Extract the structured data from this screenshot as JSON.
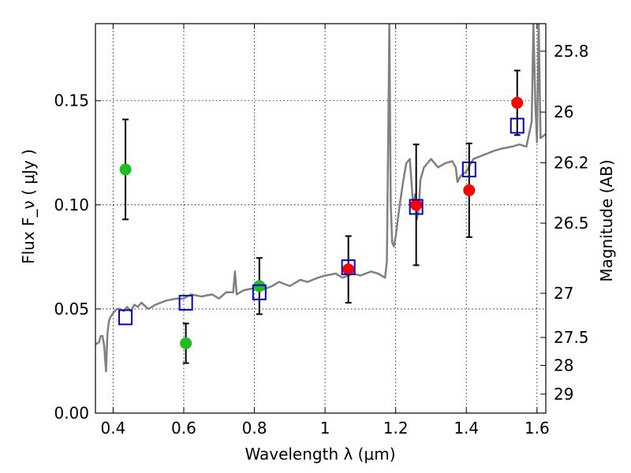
{
  "chart_data": {
    "type": "scatter",
    "xlabel": "Wavelength  λ (μm)",
    "ylabel": "Flux  F_ν  ( μJy )",
    "ylabel_right": "Magnitude (AB)",
    "xlim": [
      0.35,
      1.625
    ],
    "ylim": [
      0.0,
      0.187
    ],
    "grid": true,
    "x_ticks": [
      0.4,
      0.6,
      0.8,
      1.0,
      1.2,
      1.4,
      1.6
    ],
    "x_tick_labels": [
      "0.4",
      "0.6",
      "0.8",
      "1",
      "1.2",
      "1.4",
      "1.6"
    ],
    "y_ticks": [
      0.0,
      0.05,
      0.1,
      0.15
    ],
    "y_tick_labels": [
      "0.00",
      "0.05",
      "0.10",
      "0.15"
    ],
    "right_ticks": [
      {
        "label": "25.8",
        "mag": 25.8
      },
      {
        "label": "26",
        "mag": 26.0
      },
      {
        "label": "26.2",
        "mag": 26.2
      },
      {
        "label": "26.5",
        "mag": 26.5
      },
      {
        "label": "27",
        "mag": 27.0
      },
      {
        "label": "27.5",
        "mag": 27.5
      },
      {
        "label": "28",
        "mag": 28.0
      },
      {
        "label": "29",
        "mag": 29.0
      }
    ],
    "series": [
      {
        "marker": "circle",
        "color": "#22bb22",
        "points": [
          {
            "x": 0.435,
            "y": 0.117,
            "err": 0.024
          },
          {
            "x": 0.606,
            "y": 0.0335,
            "err": 0.0095
          },
          {
            "x": 0.814,
            "y": 0.061,
            "err": 0.0135
          }
        ]
      },
      {
        "marker": "circle",
        "color": "#ff0000",
        "points": [
          {
            "x": 1.066,
            "y": 0.069,
            "err": 0.016
          },
          {
            "x": 1.258,
            "y": 0.1,
            "err": 0.029
          },
          {
            "x": 1.408,
            "y": 0.107,
            "err": 0.0225
          },
          {
            "x": 1.544,
            "y": 0.149,
            "err": 0.0155
          }
        ]
      },
      {
        "marker": "square",
        "color": "#0000cc",
        "points": [
          {
            "x": 0.435,
            "y": 0.046
          },
          {
            "x": 0.606,
            "y": 0.053
          },
          {
            "x": 0.814,
            "y": 0.058
          },
          {
            "x": 1.066,
            "y": 0.07
          },
          {
            "x": 1.258,
            "y": 0.099
          },
          {
            "x": 1.408,
            "y": 0.117
          },
          {
            "x": 1.544,
            "y": 0.138
          }
        ]
      }
    ],
    "spectrum": {
      "color": "#808080",
      "x": [
        0.35,
        0.36,
        0.365,
        0.37,
        0.375,
        0.38,
        0.384,
        0.388,
        0.392,
        0.4,
        0.41,
        0.42,
        0.43,
        0.44,
        0.45,
        0.46,
        0.47,
        0.48,
        0.5,
        0.52,
        0.55,
        0.58,
        0.6,
        0.62,
        0.65,
        0.68,
        0.7,
        0.72,
        0.74,
        0.745,
        0.75,
        0.77,
        0.8,
        0.82,
        0.85,
        0.87,
        0.9,
        0.93,
        0.95,
        0.98,
        1.0,
        1.03,
        1.05,
        1.08,
        1.1,
        1.13,
        1.15,
        1.17,
        1.175,
        1.18,
        1.182,
        1.186,
        1.19,
        1.195,
        1.2,
        1.21,
        1.22,
        1.23,
        1.24,
        1.25,
        1.255,
        1.26,
        1.265,
        1.27,
        1.28,
        1.29,
        1.3,
        1.32,
        1.34,
        1.36,
        1.37,
        1.375,
        1.385,
        1.4,
        1.42,
        1.45,
        1.48,
        1.5,
        1.53,
        1.55,
        1.57,
        1.585,
        1.59,
        1.595,
        1.6,
        1.605,
        1.61,
        1.625
      ],
      "y": [
        0.033,
        0.034,
        0.037,
        0.037,
        0.032,
        0.02,
        0.038,
        0.044,
        0.046,
        0.048,
        0.05,
        0.05,
        0.049,
        0.051,
        0.049,
        0.052,
        0.051,
        0.053,
        0.05,
        0.052,
        0.054,
        0.055,
        0.055,
        0.057,
        0.056,
        0.057,
        0.055,
        0.058,
        0.058,
        0.068,
        0.057,
        0.059,
        0.06,
        0.059,
        0.061,
        0.063,
        0.061,
        0.064,
        0.063,
        0.065,
        0.066,
        0.067,
        0.065,
        0.067,
        0.066,
        0.068,
        0.067,
        0.065,
        0.073,
        0.15,
        0.187,
        0.1,
        0.082,
        0.08,
        0.085,
        0.098,
        0.11,
        0.12,
        0.122,
        0.098,
        0.105,
        0.093,
        0.098,
        0.112,
        0.118,
        0.12,
        0.122,
        0.118,
        0.12,
        0.121,
        0.118,
        0.111,
        0.114,
        0.116,
        0.122,
        0.124,
        0.126,
        0.127,
        0.128,
        0.129,
        0.128,
        0.14,
        0.187,
        0.15,
        0.13,
        0.187,
        0.132,
        0.134
      ]
    }
  }
}
